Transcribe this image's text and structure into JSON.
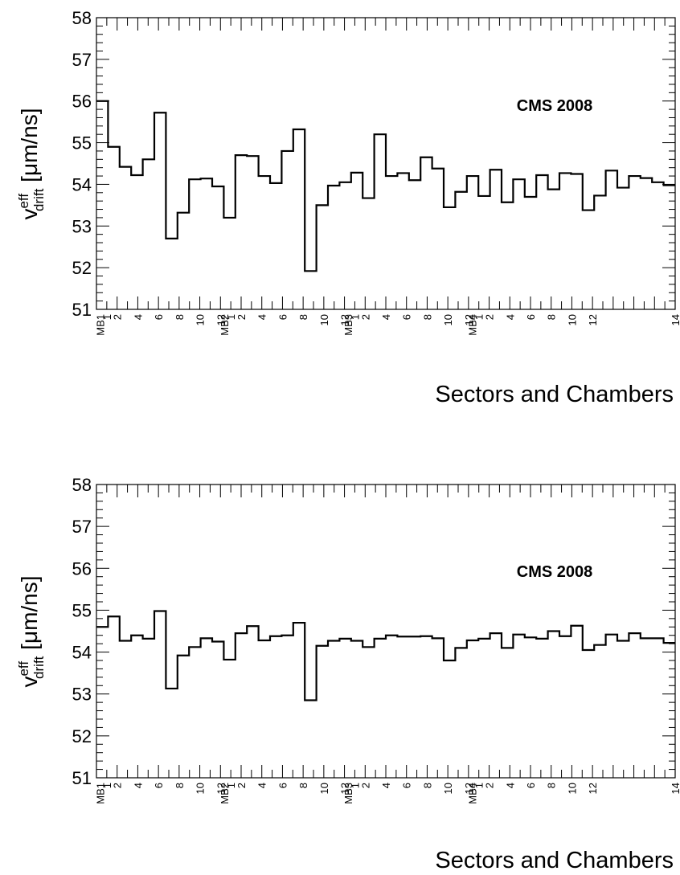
{
  "chart_data": [
    {
      "type": "histogram",
      "annotation": "CMS 2008",
      "xlabel": "Sectors and Chambers",
      "ylabel_main": "v",
      "ylabel_sup": "eff",
      "ylabel_sub": "drift",
      "ylabel_unit": " [μm/ns]",
      "ylim": [
        51,
        58
      ],
      "yticks": [
        "51",
        "52",
        "53",
        "54",
        "55",
        "56",
        "57",
        "58"
      ],
      "xlim": [
        0,
        56
      ],
      "chamber_labels": [
        "MB1",
        "MB2",
        "MB3",
        "MB4"
      ],
      "sector_tick_labels": [
        "1",
        "2",
        "4",
        "6",
        "8",
        "10",
        "12"
      ],
      "last_tick_label": "14",
      "values": [
        56.0,
        54.9,
        54.42,
        54.22,
        54.6,
        55.72,
        52.7,
        53.32,
        54.12,
        54.14,
        53.95,
        53.2,
        54.7,
        54.68,
        54.2,
        54.03,
        54.8,
        55.32,
        51.92,
        53.5,
        53.97,
        54.05,
        54.28,
        53.67,
        55.2,
        54.2,
        54.27,
        54.1,
        54.65,
        54.38,
        53.45,
        53.82,
        54.2,
        53.72,
        54.35,
        53.57,
        54.12,
        53.7,
        54.22,
        53.88,
        54.27,
        54.25,
        53.38,
        53.73,
        54.33,
        53.92,
        54.2,
        54.15,
        54.05,
        53.98
      ]
    },
    {
      "type": "histogram",
      "annotation": "CMS 2008",
      "xlabel": "Sectors and Chambers",
      "ylabel_main": "v",
      "ylabel_sup": "eff",
      "ylabel_sub": "drift",
      "ylabel_unit": " [μm/ns]",
      "ylim": [
        51,
        58
      ],
      "yticks": [
        "51",
        "52",
        "53",
        "54",
        "55",
        "56",
        "57",
        "58"
      ],
      "xlim": [
        0,
        56
      ],
      "chamber_labels": [
        "MB1",
        "MB2",
        "MB3",
        "MB4"
      ],
      "sector_tick_labels": [
        "1",
        "2",
        "4",
        "6",
        "8",
        "10",
        "12"
      ],
      "last_tick_label": "14",
      "values": [
        54.6,
        54.85,
        54.27,
        54.4,
        54.32,
        54.98,
        53.13,
        53.92,
        54.12,
        54.33,
        54.25,
        53.82,
        54.45,
        54.62,
        54.28,
        54.38,
        54.4,
        54.7,
        52.85,
        54.15,
        54.27,
        54.32,
        54.27,
        54.12,
        54.32,
        54.4,
        54.37,
        54.37,
        54.38,
        54.33,
        53.8,
        54.1,
        54.28,
        54.32,
        54.45,
        54.1,
        54.42,
        54.35,
        54.32,
        54.5,
        54.38,
        54.63,
        54.05,
        54.17,
        54.42,
        54.27,
        54.45,
        54.33,
        54.33,
        54.22
      ]
    }
  ]
}
